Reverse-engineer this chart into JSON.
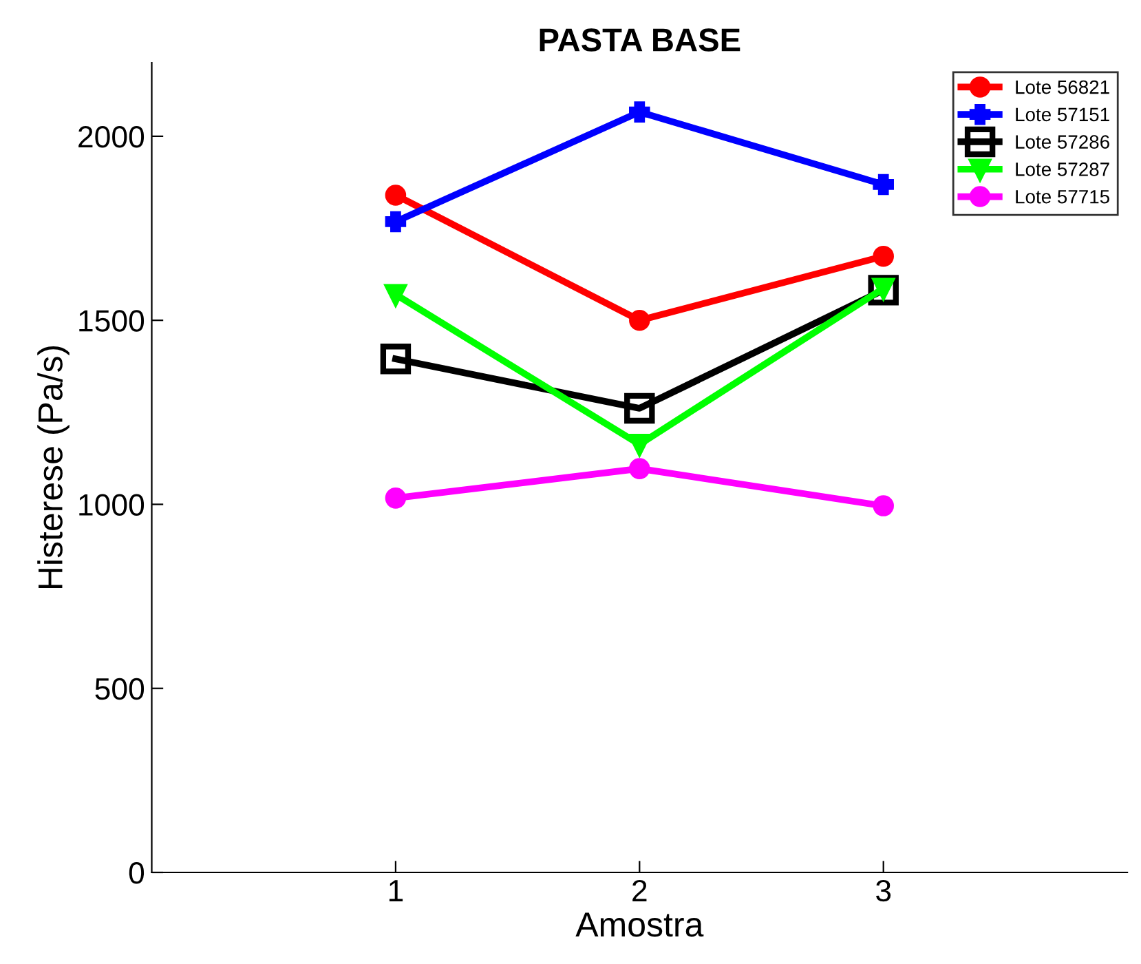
{
  "chart_data": {
    "type": "line",
    "title": "PASTA BASE",
    "xlabel": "Amostra",
    "ylabel": "Histerese (Pa/s)",
    "x": [
      1,
      2,
      3
    ],
    "xlim": [
      0,
      4
    ],
    "xticks": [
      1,
      2,
      3
    ],
    "ylim": [
      0,
      2200
    ],
    "yticks": [
      0,
      500,
      1000,
      1500,
      2000
    ],
    "grid": false,
    "legend": "top right",
    "line_style": "solid",
    "series": [
      {
        "name": "Lote 56821",
        "color": "#ff0000",
        "marker": "circle",
        "values": [
          1840,
          1500,
          1674
        ]
      },
      {
        "name": "Lote 57151",
        "color": "#0000ff",
        "marker": "cross",
        "values": [
          1768,
          2066,
          1869
        ]
      },
      {
        "name": "Lote 57286",
        "color": "#000000",
        "marker": "square",
        "values": [
          1395,
          1261,
          1582
        ]
      },
      {
        "name": "Lote 57287",
        "color": "#00ff00",
        "marker": "triangle",
        "values": [
          1570,
          1163,
          1587
        ]
      },
      {
        "name": "Lote 57715",
        "color": "#ff00ff",
        "marker": "circle",
        "values": [
          1017,
          1097,
          996
        ]
      }
    ]
  }
}
